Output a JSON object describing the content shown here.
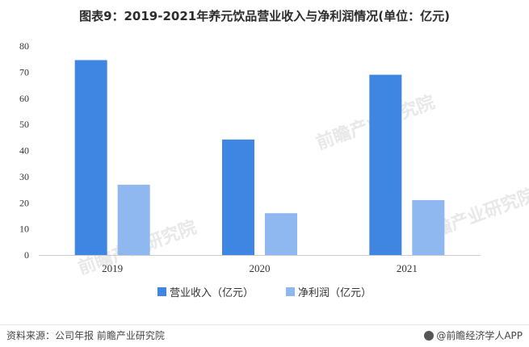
{
  "page": {
    "title": "图表9：2019-2021年养元饮品营业收入与净利润情况(单位：亿元)",
    "source": "资料来源：公司年报 前瞻产业研究院",
    "brand": "@前瞻经济学人APP",
    "watermark": "前瞻产业研究院"
  },
  "colors": {
    "revenue": "#3f86e3",
    "profit": "#8fb8f0",
    "axis": "#cccccc",
    "text": "#333333"
  },
  "chart_data": {
    "type": "bar",
    "title": "图表9：2019-2021年养元饮品营业收入与净利润情况(单位：亿元)",
    "categories": [
      "2019",
      "2020",
      "2021"
    ],
    "series": [
      {
        "name": "营业收入（亿元）",
        "values": [
          74.6,
          44.2,
          69.0
        ]
      },
      {
        "name": "净利润（亿元）",
        "values": [
          26.9,
          16.0,
          21.0
        ]
      }
    ],
    "yticks": [
      0,
      10,
      20,
      30,
      40,
      50,
      60,
      70,
      80
    ],
    "ylim": [
      0,
      80
    ],
    "grid": false,
    "legend": "bottom"
  }
}
